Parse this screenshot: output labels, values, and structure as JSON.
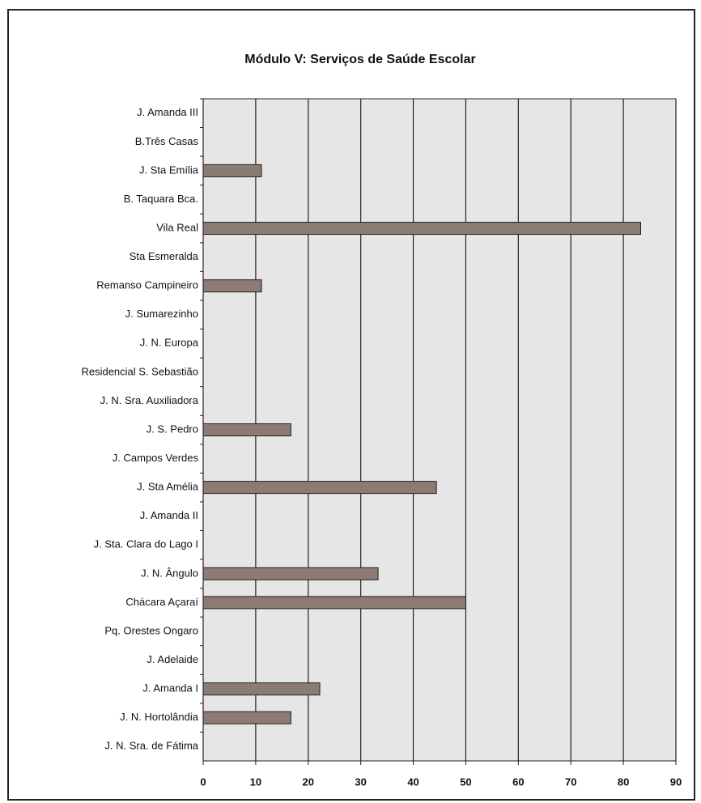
{
  "chart_data": {
    "type": "bar",
    "orientation": "horizontal",
    "title": "Módulo V: Serviços de Saúde Escolar",
    "categories": [
      "J. Amanda III",
      "B.Três Casas",
      "J. Sta Emília",
      "B. Taquara Bca.",
      "Vila Real",
      "Sta Esmeralda",
      "Remanso Campineiro",
      "J. Sumarezinho",
      "J. N. Europa",
      "Residencial S. Sebastião",
      "J. N. Sra. Auxiliadora",
      "J. S. Pedro",
      "J. Campos Verdes",
      "J. Sta Amélia",
      "J. Amanda II",
      "J. Sta. Clara do Lago I",
      "J. N. Ângulo",
      "Chácara Açaraí",
      "Pq. Orestes Ongaro",
      "J. Adelaide",
      "J. Amanda I",
      "J. N. Hortolândia",
      "J. N. Sra. de Fátima"
    ],
    "values": [
      0,
      0,
      11.1,
      0,
      83.3,
      0,
      11.1,
      0,
      0,
      0,
      0,
      16.7,
      0,
      44.4,
      0,
      0,
      33.3,
      50,
      0,
      0,
      22.2,
      16.7,
      0
    ],
    "color": "#8c7b75",
    "xlim": [
      0,
      90
    ],
    "xticks": [
      0,
      10,
      20,
      30,
      40,
      50,
      60,
      70,
      80,
      90
    ],
    "grid": true
  }
}
